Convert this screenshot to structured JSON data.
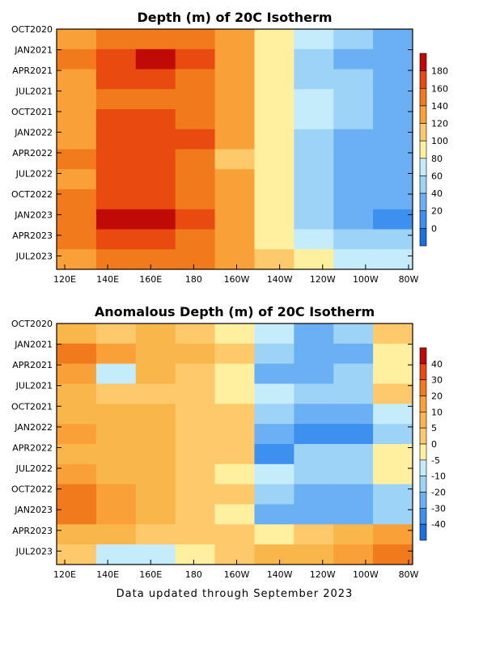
{
  "footer": "Data updated through September 2023",
  "chart_data": [
    {
      "type": "heatmap",
      "title": "Depth (m) of 20C Isotherm",
      "xlabel": "",
      "ylabel": "",
      "x_ticks": [
        "120E",
        "140E",
        "160E",
        "180",
        "160W",
        "140W",
        "120W",
        "100W",
        "80W"
      ],
      "y_ticks": [
        "OCT2020",
        "JAN2021",
        "APR2021",
        "JUL2021",
        "OCT2021",
        "JAN2022",
        "APR2022",
        "JUL2022",
        "OCT2022",
        "JAN2023",
        "APR2023",
        "JUL2023"
      ],
      "colorbar": {
        "levels": [
          0,
          20,
          40,
          60,
          80,
          100,
          120,
          140,
          160,
          180,
          200
        ],
        "colors": [
          "#1b6fe0",
          "#3d8ff0",
          "#6bb0f5",
          "#9dd3f7",
          "#c5ecfb",
          "#fff0a0",
          "#fec96a",
          "#faa038",
          "#f07a1c",
          "#e84a10",
          "#c00a06"
        ]
      },
      "summary_rows": [
        {
          "x": [
            120,
            140,
            160,
            180,
            200,
            220,
            240,
            260,
            280
          ],
          "label": "OCT2020",
          "values": [
            150,
            165,
            175,
            170,
            150,
            110,
            80,
            60,
            50
          ]
        },
        {
          "x": [
            120,
            140,
            160,
            180,
            200,
            220,
            240,
            260,
            280
          ],
          "label": "JAN2021",
          "values": [
            160,
            195,
            200,
            185,
            155,
            100,
            70,
            55,
            45
          ]
        },
        {
          "x": [
            120,
            140,
            160,
            180,
            200,
            220,
            240,
            260,
            280
          ],
          "label": "APR2021",
          "values": [
            150,
            185,
            185,
            175,
            150,
            105,
            75,
            60,
            50
          ]
        },
        {
          "x": [
            120,
            140,
            160,
            180,
            200,
            220,
            240,
            260,
            280
          ],
          "label": "JUL2021",
          "values": [
            145,
            175,
            178,
            172,
            150,
            110,
            80,
            65,
            55
          ]
        },
        {
          "x": [
            120,
            140,
            160,
            180,
            200,
            220,
            240,
            260,
            280
          ],
          "label": "OCT2021",
          "values": [
            150,
            180,
            182,
            178,
            155,
            115,
            80,
            60,
            50
          ]
        },
        {
          "x": [
            120,
            140,
            160,
            180,
            200,
            220,
            240,
            260,
            280
          ],
          "label": "JAN2022",
          "values": [
            155,
            185,
            188,
            180,
            150,
            105,
            70,
            50,
            40
          ]
        },
        {
          "x": [
            120,
            140,
            160,
            180,
            200,
            220,
            240,
            260,
            280
          ],
          "label": "APR2022",
          "values": [
            160,
            195,
            198,
            175,
            135,
            100,
            70,
            55,
            45
          ]
        },
        {
          "x": [
            120,
            140,
            160,
            180,
            200,
            220,
            240,
            260,
            280
          ],
          "label": "JUL2022",
          "values": [
            155,
            182,
            185,
            170,
            140,
            105,
            75,
            55,
            45
          ]
        },
        {
          "x": [
            120,
            140,
            160,
            180,
            200,
            220,
            240,
            260,
            280
          ],
          "label": "OCT2022",
          "values": [
            160,
            190,
            195,
            178,
            150,
            110,
            75,
            55,
            40
          ]
        },
        {
          "x": [
            120,
            140,
            160,
            180,
            200,
            220,
            240,
            260,
            280
          ],
          "label": "JAN2023",
          "values": [
            165,
            200,
            205,
            185,
            150,
            105,
            70,
            50,
            35
          ]
        },
        {
          "x": [
            120,
            140,
            160,
            180,
            200,
            220,
            240,
            260,
            280
          ],
          "label": "APR2023",
          "values": [
            160,
            190,
            188,
            175,
            150,
            115,
            85,
            70,
            65
          ]
        },
        {
          "x": [
            120,
            140,
            160,
            180,
            200,
            220,
            240,
            260,
            280
          ],
          "label": "JUL2023",
          "values": [
            150,
            175,
            172,
            165,
            145,
            120,
            100,
            85,
            80
          ]
        }
      ]
    },
    {
      "type": "heatmap",
      "title": "Anomalous Depth (m) of 20C Isotherm",
      "xlabel": "",
      "ylabel": "",
      "x_ticks": [
        "120E",
        "140E",
        "160E",
        "180",
        "160W",
        "140W",
        "120W",
        "100W",
        "80W"
      ],
      "y_ticks": [
        "OCT2020",
        "JAN2021",
        "APR2021",
        "JUL2021",
        "OCT2021",
        "JAN2022",
        "APR2022",
        "JUL2022",
        "OCT2022",
        "JAN2023",
        "APR2023",
        "JUL2023"
      ],
      "colorbar": {
        "levels": [
          -40,
          -30,
          -20,
          -10,
          -5,
          0,
          5,
          10,
          20,
          30,
          40,
          50
        ],
        "colors": [
          "#1b6fe0",
          "#3d8ff0",
          "#6bb0f5",
          "#9dd3f7",
          "#c5ecfb",
          "#fff0a0",
          "#fec96a",
          "#f9b64a",
          "#faa038",
          "#f07a1c",
          "#e84a10",
          "#c00a06"
        ]
      },
      "summary_rows": [
        {
          "x": [
            120,
            140,
            160,
            180,
            200,
            220,
            240,
            260,
            280
          ],
          "label": "OCT2020",
          "values": [
            10,
            8,
            10,
            5,
            0,
            -5,
            -15,
            -10,
            5
          ]
        },
        {
          "x": [
            120,
            140,
            160,
            180,
            200,
            220,
            240,
            260,
            280
          ],
          "label": "JAN2021",
          "values": [
            30,
            20,
            15,
            10,
            5,
            -10,
            -20,
            -15,
            0
          ]
        },
        {
          "x": [
            120,
            140,
            160,
            180,
            200,
            220,
            240,
            260,
            280
          ],
          "label": "APR2021",
          "values": [
            20,
            -5,
            10,
            5,
            3,
            -15,
            -20,
            -10,
            0
          ]
        },
        {
          "x": [
            120,
            140,
            160,
            180,
            200,
            220,
            240,
            260,
            280
          ],
          "label": "JUL2021",
          "values": [
            10,
            8,
            8,
            6,
            4,
            -5,
            -10,
            -10,
            5
          ]
        },
        {
          "x": [
            120,
            140,
            160,
            180,
            200,
            220,
            240,
            260,
            280
          ],
          "label": "OCT2021",
          "values": [
            15,
            10,
            10,
            8,
            5,
            -10,
            -20,
            -20,
            -5
          ]
        },
        {
          "x": [
            120,
            140,
            160,
            180,
            200,
            220,
            240,
            260,
            280
          ],
          "label": "JAN2022",
          "values": [
            20,
            12,
            10,
            8,
            5,
            -20,
            -30,
            -30,
            -10
          ]
        },
        {
          "x": [
            120,
            140,
            160,
            180,
            200,
            220,
            240,
            260,
            280
          ],
          "label": "APR2022",
          "values": [
            15,
            10,
            10,
            8,
            5,
            -30,
            -10,
            -10,
            0
          ]
        },
        {
          "x": [
            120,
            140,
            160,
            180,
            200,
            220,
            240,
            260,
            280
          ],
          "label": "JUL2022",
          "values": [
            20,
            12,
            10,
            6,
            4,
            -5,
            -10,
            -10,
            0
          ]
        },
        {
          "x": [
            120,
            140,
            160,
            180,
            200,
            220,
            240,
            260,
            280
          ],
          "label": "OCT2022",
          "values": [
            30,
            20,
            15,
            8,
            5,
            -10,
            -20,
            -20,
            -10
          ]
        },
        {
          "x": [
            120,
            140,
            160,
            180,
            200,
            220,
            240,
            260,
            280
          ],
          "label": "JAN2023",
          "values": [
            35,
            20,
            12,
            8,
            3,
            -15,
            -20,
            -20,
            -10
          ]
        },
        {
          "x": [
            120,
            140,
            160,
            180,
            200,
            220,
            240,
            260,
            280
          ],
          "label": "APR2023",
          "values": [
            15,
            10,
            8,
            5,
            5,
            0,
            5,
            10,
            20
          ]
        },
        {
          "x": [
            120,
            140,
            160,
            180,
            200,
            220,
            240,
            260,
            280
          ],
          "label": "JUL2023",
          "values": [
            5,
            -5,
            -5,
            0,
            5,
            10,
            15,
            20,
            30
          ]
        }
      ]
    }
  ]
}
